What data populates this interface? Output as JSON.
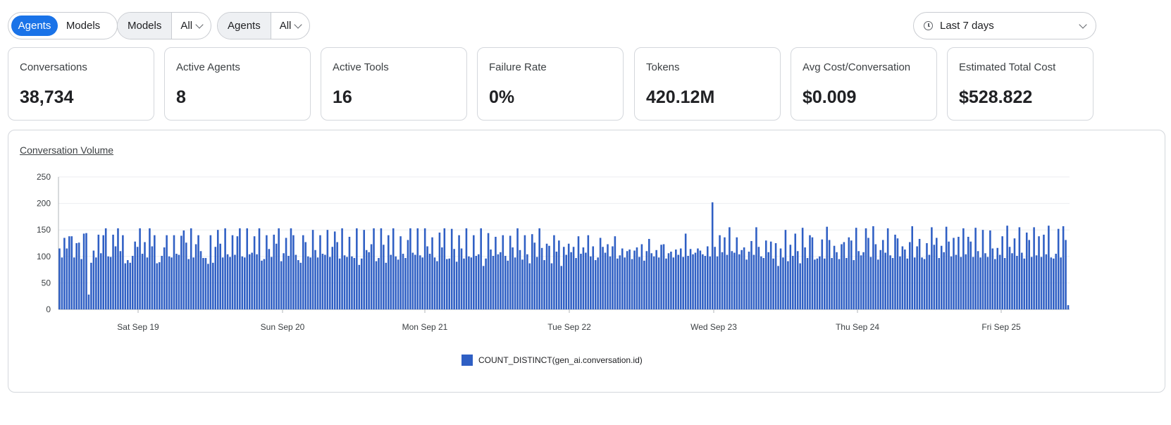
{
  "view_toggle": {
    "options": [
      "Agents",
      "Models"
    ],
    "selected": "Agents"
  },
  "filters": [
    {
      "label": "Models",
      "value": "All"
    },
    {
      "label": "Agents",
      "value": "All"
    }
  ],
  "time_range": {
    "value": "Last 7 days"
  },
  "metrics": [
    {
      "label": "Conversations",
      "value": "38,734"
    },
    {
      "label": "Active Agents",
      "value": "8"
    },
    {
      "label": "Active Tools",
      "value": "16"
    },
    {
      "label": "Failure Rate",
      "value": "0%"
    },
    {
      "label": "Tokens",
      "value": "420.12M"
    },
    {
      "label": "Avg Cost/Conversation",
      "value": "$0.009"
    },
    {
      "label": "Estimated Total Cost",
      "value": "$528.822"
    }
  ],
  "chart_panel": {
    "title": "Conversation Volume"
  },
  "colors": {
    "accent": "#1a73e8",
    "bar": "#2f5fc4"
  },
  "chart_data": {
    "type": "bar",
    "title": "Conversation Volume",
    "xlabel": "",
    "ylabel": "",
    "ylim": [
      0,
      250
    ],
    "yticks": [
      0,
      50,
      100,
      150,
      200,
      250
    ],
    "xticks": [
      "Sat Sep 19",
      "Sun Sep 20",
      "Mon Sep 21",
      "Tue Sep 22",
      "Wed Sep 23",
      "Thu Sep 24",
      "Fri Sep 25"
    ],
    "grid": true,
    "legend_position": "bottom",
    "series": [
      {
        "name": "COUNT_DISTINCT(gen_ai.conversation.id)",
        "values": [
          115,
          98,
          135,
          115,
          138,
          138,
          98,
          125,
          126,
          95,
          143,
          144,
          28,
          88,
          111,
          98,
          141,
          106,
          140,
          153,
          100,
          99,
          141,
          119,
          153,
          110,
          140,
          87,
          93,
          88,
          101,
          128,
          118,
          153,
          105,
          127,
          98,
          153,
          119,
          140,
          87,
          89,
          101,
          117,
          140,
          100,
          98,
          140,
          105,
          103,
          139,
          149,
          126,
          95,
          153,
          98,
          123,
          140,
          110,
          97,
          97,
          86,
          140,
          88,
          118,
          150,
          124,
          98,
          153,
          104,
          99,
          140,
          103,
          138,
          153,
          100,
          98,
          153,
          104,
          107,
          138,
          104,
          153,
          92,
          95,
          140,
          114,
          99,
          141,
          124,
          153,
          91,
          106,
          135,
          101,
          153,
          140,
          103,
          93,
          88,
          140,
          127,
          100,
          98,
          150,
          112,
          98,
          140,
          105,
          103,
          150,
          99,
          118,
          147,
          127,
          96,
          153,
          102,
          99,
          137,
          100,
          97,
          153,
          84,
          96,
          150,
          112,
          108,
          123,
          153,
          91,
          97,
          153,
          122,
          88,
          140,
          103,
          153,
          100,
          94,
          138,
          105,
          97,
          131,
          153,
          107,
          103,
          153,
          102,
          98,
          153,
          119,
          105,
          136,
          98,
          91,
          145,
          117,
          153,
          95,
          96,
          152,
          114,
          90,
          140,
          115,
          96,
          153,
          100,
          98,
          140,
          101,
          104,
          153,
          82,
          96,
          144,
          113,
          101,
          137,
          104,
          108,
          140,
          101,
          92,
          139,
          117,
          98,
          153,
          112,
          94,
          140,
          104,
          87,
          142,
          126,
          99,
          153,
          116,
          93,
          124,
          120,
          87,
          140,
          109,
          130,
          82,
          118,
          103,
          124,
          108,
          118,
          97,
          138,
          105,
          117,
          107,
          140,
          100,
          119,
          93,
          98,
          135,
          118,
          107,
          123,
          100,
          119,
          138,
          96,
          102,
          115,
          98,
          110,
          113,
          95,
          111,
          117,
          99,
          123,
          92,
          110,
          133,
          106,
          100,
          112,
          98,
          122,
          123,
          96,
          106,
          109,
          98,
          113,
          103,
          115,
          99,
          143,
          101,
          114,
          104,
          107,
          115,
          111,
          104,
          101,
          119,
          100,
          202,
          118,
          100,
          140,
          108,
          136,
          103,
          155,
          110,
          107,
          136,
          104,
          112,
          117,
          94,
          109,
          129,
          103,
          155,
          118,
          100,
          97,
          130,
          108,
          128,
          96,
          125,
          82,
          115,
          98,
          150,
          91,
          122,
          101,
          143,
          110,
          87,
          154,
          117,
          97,
          140,
          136,
          94,
          96,
          100,
          132,
          96,
          156,
          131,
          97,
          120,
          108,
          95,
          123,
          127,
          97,
          136,
          130,
          93,
          154,
          110,
          102,
          108,
          153,
          135,
          99,
          157,
          123,
          94,
          112,
          131,
          107,
          153,
          102,
          97,
          141,
          134,
          100,
          119,
          113,
          96,
          127,
          157,
          98,
          119,
          133,
          98,
          95,
          125,
          103,
          155,
          122,
          135,
          97,
          120,
          108,
          156,
          128,
          100,
          135,
          103,
          137,
          99,
          153,
          104,
          137,
          128,
          99,
          154,
          110,
          98,
          150,
          106,
          99,
          149,
          115,
          95,
          116,
          103,
          138,
          97,
          158,
          118,
          106,
          134,
          101,
          155,
          107,
          96,
          145,
          131,
          99,
          155,
          102,
          138,
          99,
          141,
          104,
          158,
          98,
          96,
          105,
          152,
          98,
          157,
          131,
          8
        ]
      }
    ]
  }
}
